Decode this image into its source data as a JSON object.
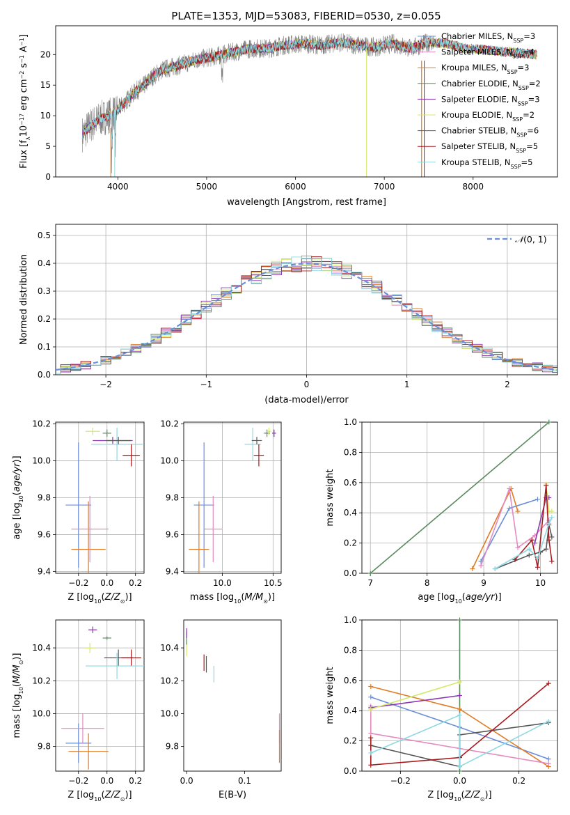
{
  "figure": {
    "title": "PLATE=1353, MJD=53083, FIBERID=0530, z=0.055",
    "background": "#ffffff",
    "grid_color": "#b0b0b0"
  },
  "chart_data": [
    {
      "id": "spectrum",
      "type": "line",
      "title": "PLATE=1353, MJD=53083, FIBERID=0530, z=0.055",
      "xlabel": "wavelength [Angstrom, rest frame]",
      "ylabel": "Flux [f_λ10^-17 erg cm^-2 s^-1 A^-1]",
      "xlim": [
        3300,
        8950
      ],
      "ylim": [
        0,
        24.7
      ],
      "xticks": [
        4000,
        5000,
        6000,
        7000,
        8000
      ],
      "yticks": [
        0,
        5,
        10,
        15,
        20
      ],
      "grid": false,
      "legend_position": "right",
      "data_color": "#808080",
      "legend": [
        {
          "name": "Chabrier MILES, N_SSP=3",
          "color": "#6a8fd8"
        },
        {
          "name": "Salpeter MILES, N_SSP=4",
          "color": "#e38ac0"
        },
        {
          "name": "Kroupa MILES, N_SSP=3",
          "color": "#e07b25"
        },
        {
          "name": "Chabrier ELODIE, N_SSP=2",
          "color": "#5b8a5e"
        },
        {
          "name": "Salpeter ELODIE, N_SSP=3",
          "color": "#8e35b0"
        },
        {
          "name": "Kroupa ELODIE, N_SSP=2",
          "color": "#d4e86a"
        },
        {
          "name": "Chabrier STELIB, N_SSP=6",
          "color": "#555555"
        },
        {
          "name": "Salpeter STELIB, N_SSP=5",
          "color": "#a8181c"
        },
        {
          "name": "Kroupa STELIB, N_SSP=5",
          "color": "#8ed8e2"
        }
      ],
      "continuum": {
        "x": [
          3600,
          3700,
          3800,
          3900,
          4000,
          4100,
          4200,
          4300,
          4400,
          4500,
          4700,
          4900,
          5100,
          5300,
          5500,
          5700,
          5900,
          6100,
          6300,
          6500,
          6700,
          6900,
          7100,
          7300,
          7500,
          7700,
          7900,
          8100,
          8300,
          8500,
          8700
        ],
        "y": [
          7.0,
          8.5,
          9.5,
          10.0,
          11.0,
          12.5,
          14.0,
          15.0,
          16.5,
          17.5,
          18.3,
          19.2,
          19.7,
          20.4,
          21.0,
          21.0,
          21.6,
          21.8,
          21.5,
          22.0,
          21.5,
          21.2,
          21.8,
          21.0,
          22.0,
          21.8,
          21.0,
          20.8,
          20.5,
          20.3,
          20.0
        ]
      },
      "model_range": [
        3600,
        8720
      ],
      "data_range": [
        3600,
        7560
      ]
    },
    {
      "id": "residuals",
      "type": "histogram",
      "xlabel": "(data-model)/error",
      "ylabel": "Normed distribution",
      "xlim": [
        -2.5,
        2.5
      ],
      "ylim": [
        0,
        0.54
      ],
      "xticks": [
        -2,
        -1,
        0,
        1,
        2
      ],
      "xtick_labels": [
        "−2",
        "−1",
        "0",
        "1",
        "2"
      ],
      "yticks": [
        0.0,
        0.1,
        0.2,
        0.3,
        0.4,
        0.5
      ],
      "grid": true,
      "legend_position": "top-right",
      "legend": [
        {
          "name": "N(0,1)",
          "color": "#6a8fd8",
          "style": "dashed"
        }
      ]
    },
    {
      "id": "age-vs-Z",
      "type": "scatter",
      "xlabel": "Z [log10(Z/Z☉)]",
      "ylabel": "age  [log10(age/yr)]",
      "xlim": [
        -0.36,
        0.26
      ],
      "ylim": [
        9.39,
        10.21
      ],
      "xticks": [
        -0.2,
        0.0,
        0.2
      ],
      "xtick_labels": [
        "−0.2",
        "0.0",
        "0.2"
      ],
      "yticks": [
        9.4,
        9.6,
        9.8,
        10.0,
        10.2
      ],
      "grid": true,
      "points": [
        {
          "x": -0.2,
          "y": 9.76,
          "xerr": 0.09,
          "yerr": 0.34,
          "color": "#6a8fd8"
        },
        {
          "x": -0.13,
          "y": 9.52,
          "xerr": 0.12,
          "yerr": 0.26,
          "color": "#e07b25"
        },
        {
          "x": -0.12,
          "y": 9.63,
          "xerr": 0.13,
          "yerr": 0.18,
          "color": "#e38ac0"
        },
        {
          "x": -0.1,
          "y": 10.16,
          "xerr": 0.05,
          "yerr": 0.02,
          "color": "#d4e86a"
        },
        {
          "x": 0.0,
          "y": 10.15,
          "xerr": 0.03,
          "yerr": 0.02,
          "color": "#5b8a5e"
        },
        {
          "x": 0.04,
          "y": 10.11,
          "xerr": 0.14,
          "yerr": 0.02,
          "color": "#8e35b0"
        },
        {
          "x": 0.07,
          "y": 10.09,
          "xerr": 0.18,
          "yerr": 0.09,
          "color": "#8ed8e2"
        },
        {
          "x": 0.08,
          "y": 10.11,
          "xerr": 0.09,
          "yerr": 0.02,
          "color": "#555555"
        },
        {
          "x": 0.17,
          "y": 10.03,
          "xerr": 0.06,
          "yerr": 0.06,
          "color": "#a8181c"
        }
      ]
    },
    {
      "id": "age-vs-mass",
      "type": "scatter",
      "xlabel": "mass [log10(M/M☉)]",
      "ylabel": "",
      "xlim": [
        9.62,
        10.58
      ],
      "ylim": [
        9.39,
        10.21
      ],
      "xticks": [
        10.0,
        10.5
      ],
      "yticks": [
        9.4,
        9.6,
        9.8,
        10.0,
        10.2
      ],
      "grid": true,
      "points": [
        {
          "x": 9.82,
          "y": 9.76,
          "xerr": 0.1,
          "yerr": 0.34,
          "color": "#6a8fd8"
        },
        {
          "x": 9.77,
          "y": 9.52,
          "xerr": 0.1,
          "yerr": 0.26,
          "color": "#e07b25"
        },
        {
          "x": 9.91,
          "y": 9.63,
          "xerr": 0.09,
          "yerr": 0.18,
          "color": "#e38ac0"
        },
        {
          "x": 10.3,
          "y": 10.09,
          "xerr": 0.08,
          "yerr": 0.09,
          "color": "#8ed8e2"
        },
        {
          "x": 10.34,
          "y": 10.11,
          "xerr": 0.05,
          "yerr": 0.02,
          "color": "#555555"
        },
        {
          "x": 10.36,
          "y": 10.03,
          "xerr": 0.05,
          "yerr": 0.06,
          "color": "#a8181c"
        },
        {
          "x": 10.44,
          "y": 10.15,
          "xerr": 0.03,
          "yerr": 0.02,
          "color": "#5b8a5e"
        },
        {
          "x": 10.46,
          "y": 10.16,
          "xerr": 0.02,
          "yerr": 0.02,
          "color": "#d4e86a"
        },
        {
          "x": 10.51,
          "y": 10.15,
          "xerr": 0.02,
          "yerr": 0.02,
          "color": "#8e35b0"
        }
      ]
    },
    {
      "id": "weight-vs-age",
      "type": "line",
      "xlabel": "age  [log10(age/yr)]",
      "ylabel": "mass weight",
      "xlim": [
        6.85,
        10.3
      ],
      "ylim": [
        0,
        1
      ],
      "xticks": [
        7,
        8,
        9,
        10
      ],
      "yticks": [
        0.0,
        0.2,
        0.4,
        0.6,
        0.8,
        1.0
      ],
      "grid": true,
      "series": [
        {
          "color": "#5b8a5e",
          "x": [
            7.0,
            10.15
          ],
          "y": [
            0.0,
            1.0
          ]
        },
        {
          "color": "#6a8fd8",
          "x": [
            8.95,
            9.45,
            9.95
          ],
          "y": [
            0.08,
            0.43,
            0.49
          ]
        },
        {
          "color": "#e07b25",
          "x": [
            8.8,
            9.48,
            9.6
          ],
          "y": [
            0.03,
            0.56,
            0.41
          ]
        },
        {
          "color": "#e38ac0",
          "x": [
            8.95,
            9.45,
            9.6,
            9.9,
            10.15
          ],
          "y": [
            0.05,
            0.56,
            0.17,
            0.25,
            0.35
          ]
        },
        {
          "color": "#8e35b0",
          "x": [
            9.9,
            10.1,
            10.15
          ],
          "y": [
            0.2,
            0.5,
            0.5
          ]
        },
        {
          "color": "#d4e86a",
          "x": [
            10.1,
            10.15,
            10.2
          ],
          "y": [
            0.59,
            0.41,
            0.41
          ]
        },
        {
          "color": "#555555",
          "x": [
            9.2,
            9.8,
            10.0,
            10.1,
            10.15,
            10.2
          ],
          "y": [
            0.03,
            0.12,
            0.14,
            0.16,
            0.32,
            0.24
          ]
        },
        {
          "color": "#a8181c",
          "x": [
            9.55,
            9.85,
            9.95,
            10.1,
            10.15,
            10.2
          ],
          "y": [
            0.09,
            0.22,
            0.04,
            0.58,
            0.22,
            0.08
          ]
        },
        {
          "color": "#8ed8e2",
          "x": [
            9.2,
            9.8,
            9.95,
            10.15,
            10.2
          ],
          "y": [
            0.03,
            0.16,
            0.1,
            0.33,
            0.37
          ]
        }
      ]
    },
    {
      "id": "mass-vs-Z",
      "type": "scatter",
      "xlabel": "Z [log10(Z/Z☉)]",
      "ylabel": "mass [log10(M/M☉)]",
      "xlim": [
        -0.36,
        0.26
      ],
      "ylim": [
        9.65,
        10.57
      ],
      "xticks": [
        -0.2,
        0.0,
        0.2
      ],
      "xtick_labels": [
        "−0.2",
        "0.0",
        "0.2"
      ],
      "yticks": [
        9.8,
        10.0,
        10.2,
        10.4
      ],
      "grid": true,
      "points": [
        {
          "x": -0.2,
          "y": 9.82,
          "xerr": 0.09,
          "yerr": 0.12,
          "color": "#6a8fd8"
        },
        {
          "x": -0.13,
          "y": 9.77,
          "xerr": 0.14,
          "yerr": 0.11,
          "color": "#e07b25"
        },
        {
          "x": -0.17,
          "y": 9.91,
          "xerr": 0.15,
          "yerr": 0.09,
          "color": "#e38ac0"
        },
        {
          "x": -0.12,
          "y": 10.4,
          "xerr": 0.04,
          "yerr": 0.03,
          "color": "#d4e86a"
        },
        {
          "x": -0.1,
          "y": 10.51,
          "xerr": 0.03,
          "yerr": 0.02,
          "color": "#8e35b0"
        },
        {
          "x": 0.0,
          "y": 10.46,
          "xerr": 0.03,
          "yerr": 0.01,
          "color": "#5b8a5e"
        },
        {
          "x": 0.08,
          "y": 10.34,
          "xerr": 0.1,
          "yerr": 0.05,
          "color": "#555555"
        },
        {
          "x": 0.17,
          "y": 10.34,
          "xerr": 0.07,
          "yerr": 0.05,
          "color": "#a8181c"
        },
        {
          "x": 0.07,
          "y": 10.29,
          "xerr": 0.22,
          "yerr": 0.08,
          "color": "#8ed8e2"
        }
      ]
    },
    {
      "id": "mass-vs-ebv",
      "type": "scatter",
      "xlabel": "E(B-V)",
      "ylabel": "",
      "xlim": [
        -0.005,
        0.163
      ],
      "ylim": [
        9.65,
        10.57
      ],
      "xticks": [
        0.0,
        0.1
      ],
      "yticks": [
        9.8,
        10.0,
        10.2,
        10.4
      ],
      "grid": false,
      "points": [
        {
          "x": 0.0,
          "y": 10.4,
          "yerr": 0.05,
          "color": "#d4e86a"
        },
        {
          "x": 0.0,
          "y": 10.46,
          "yerr": 0.04,
          "color": "#5b8a5e"
        },
        {
          "x": 0.0,
          "y": 10.49,
          "yerr": 0.03,
          "color": "#8e35b0"
        },
        {
          "x": 0.03,
          "y": 10.31,
          "yerr": 0.05,
          "color": "#a8181c"
        },
        {
          "x": 0.034,
          "y": 10.3,
          "yerr": 0.05,
          "color": "#555555"
        },
        {
          "x": 0.047,
          "y": 10.24,
          "yerr": 0.05,
          "color": "#8ed8e2"
        },
        {
          "x": 0.16,
          "y": 9.91,
          "yerr": 0.09,
          "color": "#e38ac0"
        },
        {
          "x": 0.16,
          "y": 9.8,
          "yerr": 0.1,
          "color": "#e07b25"
        }
      ]
    },
    {
      "id": "weight-vs-Z",
      "type": "line",
      "xlabel": "Z [log10(Z/Z☉)]",
      "ylabel": "mass weight",
      "xlim": [
        -0.33,
        0.33
      ],
      "ylim": [
        0,
        1
      ],
      "xticks": [
        -0.2,
        0.0,
        0.2
      ],
      "xtick_labels": [
        "−0.2",
        "0.0",
        "0.2"
      ],
      "yticks": [
        0.0,
        0.2,
        0.4,
        0.6,
        0.8,
        1.0
      ],
      "grid": true,
      "series": [
        {
          "color": "#5b8a5e",
          "x": [
            0.0,
            0.0
          ],
          "y": [
            0.0,
            1.0
          ]
        },
        {
          "color": "#6a8fd8",
          "x": [
            -0.3,
            0.0,
            0.3
          ],
          "y": [
            0.49,
            0.29,
            0.08
          ]
        },
        {
          "color": "#e07b25",
          "x": [
            -0.3,
            0.0,
            0.3
          ],
          "y": [
            0.56,
            0.41,
            0.03
          ]
        },
        {
          "color": "#e38ac0",
          "x": [
            -0.3,
            -0.3,
            0.3
          ],
          "y": [
            0.43,
            0.25,
            0.05
          ]
        },
        {
          "color": "#8e35b0",
          "x": [
            -0.3,
            0.0
          ],
          "y": [
            0.42,
            0.5
          ]
        },
        {
          "color": "#d4e86a",
          "x": [
            -0.3,
            0.0
          ],
          "y": [
            0.41,
            0.59
          ]
        },
        {
          "color": "#555555",
          "x": [
            -0.3,
            0.0,
            0.0,
            0.3
          ],
          "y": [
            0.17,
            0.03,
            0.24,
            0.32
          ]
        },
        {
          "color": "#a8181c",
          "x": [
            -0.3,
            -0.3,
            0.0,
            0.0,
            0.3
          ],
          "y": [
            0.22,
            0.04,
            0.09,
            0.09,
            0.58
          ]
        },
        {
          "color": "#8ed8e2",
          "x": [
            -0.3,
            0.0,
            0.0,
            0.3
          ],
          "y": [
            0.12,
            0.37,
            0.03,
            0.33
          ]
        }
      ]
    }
  ]
}
